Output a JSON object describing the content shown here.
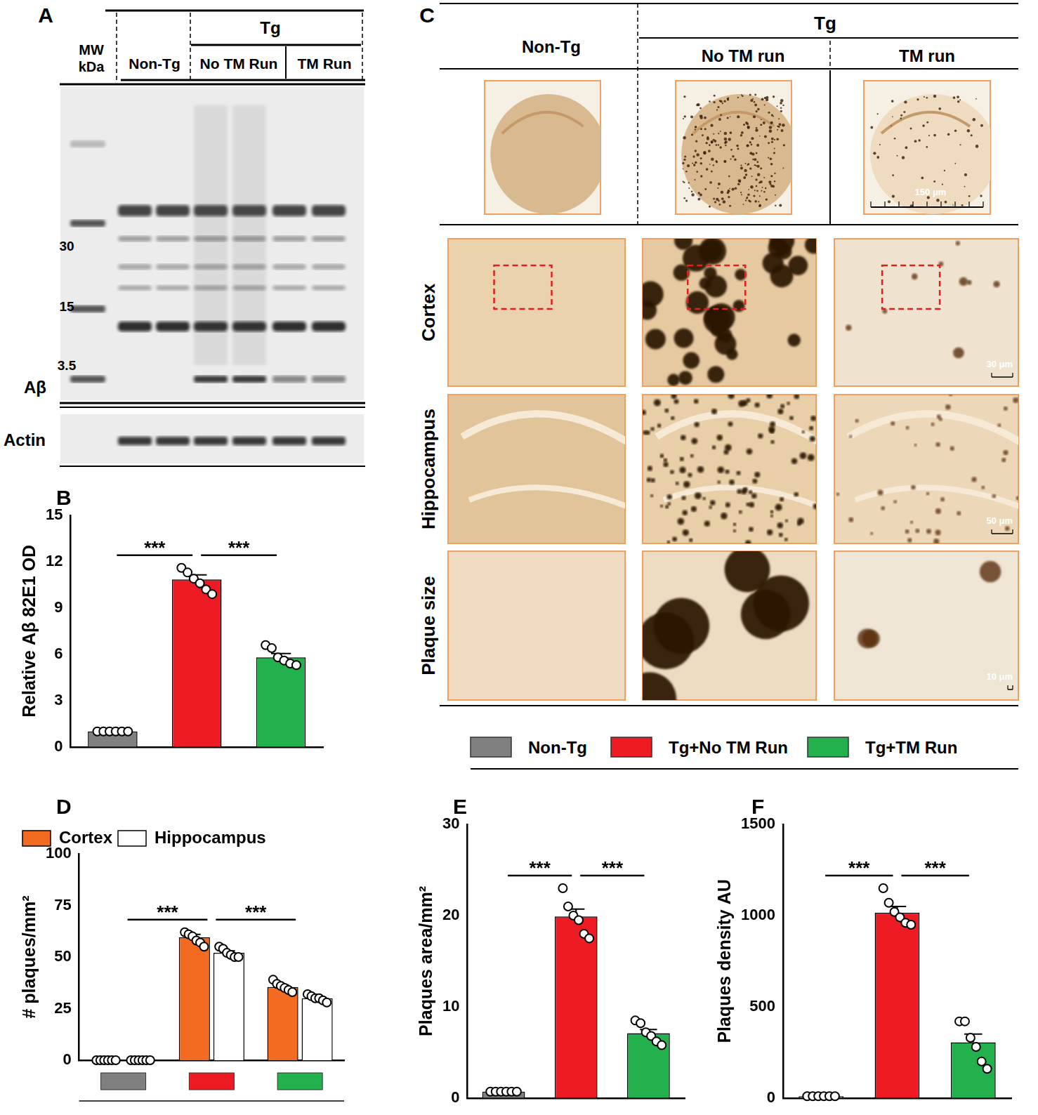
{
  "blot": {
    "label": "A",
    "mw_header": "MW kDa",
    "group_top": "Tg",
    "groups": [
      "Non-Tg",
      "No TM Run",
      "TM Run"
    ],
    "markers": [
      30,
      15,
      3.5
    ],
    "band_label": "Aβ",
    "loading_label": "Actin"
  },
  "histology": {
    "label": "C",
    "group_top": "Tg",
    "columns": [
      "Non-Tg",
      "No TM run",
      "TM run"
    ],
    "rows": [
      "Cortex",
      "Hippocampus",
      "Plaque size"
    ],
    "scale_bars": [
      "150 μm",
      "30 μm",
      "50 μm",
      "10 μm"
    ]
  },
  "group_legend": [
    {
      "name": "Non-Tg",
      "color": "#808080"
    },
    {
      "name": "Tg+No TM Run",
      "color": "#ed1c24"
    },
    {
      "name": "Tg+TM Run",
      "color": "#22b14c"
    }
  ],
  "chart_data": [
    {
      "label": "B",
      "type": "bar",
      "ylabel": "Relative Aβ 82E1 OD",
      "categories": [
        null,
        null,
        null
      ],
      "values": [
        1.0,
        10.85,
        5.8
      ],
      "errors": [
        0.05,
        0.3,
        0.25
      ],
      "points": [
        [
          1,
          1,
          1,
          1,
          1,
          1
        ],
        [
          11.6,
          11.3,
          10.9,
          10.6,
          10.2,
          9.9
        ],
        [
          6.6,
          6.4,
          5.8,
          5.6,
          5.4,
          5.3
        ]
      ],
      "colors": [
        "#808080",
        "#ed1c24",
        "#22b14c"
      ],
      "ylim": [
        0,
        15
      ],
      "yticks": [
        0,
        3,
        6,
        9,
        12,
        15
      ],
      "grid": false,
      "tick_labels": "y",
      "annotations": [
        {
          "text": "***",
          "between": [
            0,
            1
          ]
        },
        {
          "text": "***",
          "between": [
            1,
            2
          ]
        }
      ]
    },
    {
      "label": "D",
      "type": "bar",
      "ylabel": "# plaques/mm²",
      "categories": [
        null,
        null,
        null
      ],
      "series": [
        {
          "name": "Cortex",
          "color": "#f26b21",
          "values": [
            0,
            59.5,
            35.5
          ],
          "errors": [
            0,
            1.5,
            1
          ],
          "points": [
            [
              0,
              0,
              0,
              0,
              0,
              0
            ],
            [
              62,
              61,
              60,
              58,
              57,
              55
            ],
            [
              39,
              37,
              36,
              35,
              34,
              33
            ]
          ]
        },
        {
          "name": "Hippocampus",
          "color": "#ffffff",
          "values": [
            0,
            52,
            30
          ],
          "errors": [
            0,
            1,
            0.7
          ],
          "points": [
            [
              0,
              0,
              0,
              0,
              0,
              0
            ],
            [
              55,
              54,
              52,
              51,
              50,
              50
            ],
            [
              32,
              31,
              30,
              30,
              29,
              28
            ]
          ]
        }
      ],
      "colors": [
        "#808080",
        "#ed1c24",
        "#22b14c"
      ],
      "ylim": [
        0,
        100
      ],
      "yticks": [
        0,
        25,
        50,
        75,
        100
      ],
      "grid": false,
      "tick_labels": "y",
      "legend": "top-left",
      "annotations": [
        {
          "text": "***",
          "between": [
            0,
            1
          ]
        },
        {
          "text": "***",
          "between": [
            1,
            2
          ]
        }
      ]
    },
    {
      "label": "E",
      "type": "bar",
      "ylabel": "Plaques area/mm²",
      "categories": [
        null,
        null,
        null
      ],
      "values": [
        0.7,
        19.9,
        7.1
      ],
      "errors": [
        0.1,
        0.8,
        0.4
      ],
      "points": [
        [
          0.7,
          0.7,
          0.7,
          0.7,
          0.7,
          0.7
        ],
        [
          23,
          21,
          20,
          19.5,
          18,
          17.5
        ],
        [
          8.5,
          8.2,
          7.2,
          6.8,
          6.2,
          5.8
        ]
      ],
      "colors": [
        "#808080",
        "#ed1c24",
        "#22b14c"
      ],
      "ylim": [
        0,
        30
      ],
      "yticks": [
        0,
        10,
        20,
        30
      ],
      "grid": false,
      "tick_labels": "y",
      "annotations": [
        {
          "text": "***",
          "between": [
            0,
            1
          ]
        },
        {
          "text": "***",
          "between": [
            1,
            2
          ]
        }
      ]
    },
    {
      "label": "F",
      "type": "bar",
      "ylabel": "Plaques density AU",
      "categories": [
        null,
        null,
        null
      ],
      "values": [
        10,
        1015,
        305
      ],
      "errors": [
        3,
        35,
        45
      ],
      "points": [
        [
          10,
          10,
          10,
          10,
          10,
          10
        ],
        [
          1150,
          1070,
          1020,
          990,
          960,
          950
        ],
        [
          420,
          420,
          330,
          280,
          200,
          160
        ]
      ],
      "colors": [
        "#808080",
        "#ed1c24",
        "#22b14c"
      ],
      "ylim": [
        0,
        1500
      ],
      "yticks": [
        0,
        500,
        1000,
        1500
      ],
      "grid": false,
      "tick_labels": "y",
      "annotations": [
        {
          "text": "***",
          "between": [
            0,
            1
          ]
        },
        {
          "text": "***",
          "between": [
            1,
            2
          ]
        }
      ]
    }
  ]
}
